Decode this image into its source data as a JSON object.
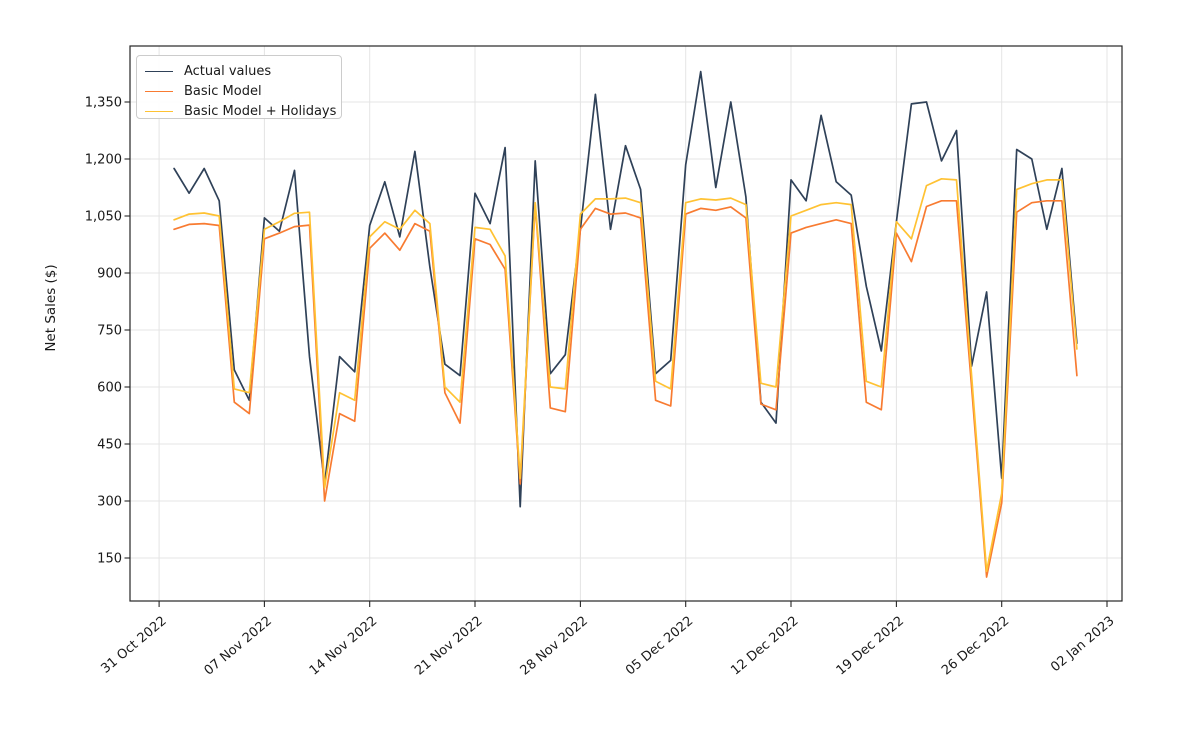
{
  "chart_data": {
    "type": "line",
    "title": "",
    "xlabel": "",
    "ylabel": "Net Sales ($)",
    "grid": true,
    "legend_position": "upper left",
    "x": [
      "2022-11-01",
      "2022-11-02",
      "2022-11-03",
      "2022-11-04",
      "2022-11-05",
      "2022-11-06",
      "2022-11-07",
      "2022-11-08",
      "2022-11-09",
      "2022-11-10",
      "2022-11-11",
      "2022-11-12",
      "2022-11-13",
      "2022-11-14",
      "2022-11-15",
      "2022-11-16",
      "2022-11-17",
      "2022-11-18",
      "2022-11-19",
      "2022-11-20",
      "2022-11-21",
      "2022-11-22",
      "2022-11-23",
      "2022-11-24",
      "2022-11-25",
      "2022-11-26",
      "2022-11-27",
      "2022-11-28",
      "2022-11-29",
      "2022-11-30",
      "2022-12-01",
      "2022-12-02",
      "2022-12-03",
      "2022-12-04",
      "2022-12-05",
      "2022-12-06",
      "2022-12-07",
      "2022-12-08",
      "2022-12-09",
      "2022-12-10",
      "2022-12-11",
      "2022-12-12",
      "2022-12-13",
      "2022-12-14",
      "2022-12-15",
      "2022-12-16",
      "2022-12-17",
      "2022-12-18",
      "2022-12-19",
      "2022-12-20",
      "2022-12-21",
      "2022-12-22",
      "2022-12-23",
      "2022-12-24",
      "2022-12-25",
      "2022-12-26",
      "2022-12-27",
      "2022-12-28",
      "2022-12-29",
      "2022-12-30",
      "2022-12-31"
    ],
    "x_ticks": [
      {
        "label": "31 Oct 2022",
        "day": -1
      },
      {
        "label": "07 Nov 2022",
        "day": 6
      },
      {
        "label": "14 Nov 2022",
        "day": 13
      },
      {
        "label": "21 Nov 2022",
        "day": 20
      },
      {
        "label": "28 Nov 2022",
        "day": 27
      },
      {
        "label": "05 Dec 2022",
        "day": 34
      },
      {
        "label": "12 Dec 2022",
        "day": 41
      },
      {
        "label": "19 Dec 2022",
        "day": 48
      },
      {
        "label": "26 Dec 2022",
        "day": 55
      },
      {
        "label": "02 Jan 2023",
        "day": 62
      }
    ],
    "y_ticks": [
      150,
      300,
      450,
      600,
      750,
      900,
      1050,
      1200,
      1350
    ],
    "y_tick_labels": [
      "150",
      "300",
      "450",
      "600",
      "750",
      "900",
      "1,050",
      "1,200",
      "1,350"
    ],
    "ylim": [
      40,
      1500
    ],
    "series": [
      {
        "name": "Actual values",
        "color": "#2f4158",
        "values": [
          1175,
          1110,
          1175,
          1090,
          645,
          565,
          1045,
          1010,
          1170,
          680,
          345,
          680,
          640,
          1025,
          1140,
          995,
          1220,
          915,
          660,
          630,
          1110,
          1030,
          1230,
          285,
          1195,
          635,
          685,
          1015,
          1370,
          1015,
          1235,
          1120,
          635,
          670,
          1185,
          1430,
          1125,
          1350,
          1100,
          560,
          505,
          1145,
          1090,
          1315,
          1140,
          1105,
          865,
          695,
          1035,
          1345,
          1350,
          1195,
          1275,
          655,
          850,
          360,
          1225,
          1200,
          1015,
          1175,
          715
        ]
      },
      {
        "name": "Basic Model",
        "color": "#f87b31",
        "values": [
          1015,
          1028,
          1030,
          1025,
          560,
          530,
          990,
          1005,
          1022,
          1026,
          300,
          530,
          510,
          965,
          1005,
          960,
          1030,
          1010,
          585,
          505,
          990,
          975,
          910,
          345,
          1080,
          545,
          535,
          1015,
          1070,
          1055,
          1058,
          1045,
          565,
          550,
          1055,
          1070,
          1065,
          1074,
          1045,
          555,
          540,
          1005,
          1020,
          1030,
          1040,
          1030,
          560,
          540,
          1005,
          930,
          1075,
          1090,
          1090,
          600,
          100,
          295,
          1060,
          1085,
          1090,
          1090,
          630
        ]
      },
      {
        "name": "Basic Model + Holidays",
        "color": "#ffc233",
        "values": [
          1040,
          1055,
          1058,
          1050,
          595,
          585,
          1015,
          1035,
          1057,
          1060,
          335,
          585,
          565,
          995,
          1035,
          1015,
          1065,
          1030,
          600,
          560,
          1020,
          1015,
          945,
          360,
          1085,
          600,
          595,
          1055,
          1095,
          1095,
          1097,
          1085,
          615,
          595,
          1085,
          1095,
          1092,
          1097,
          1080,
          610,
          600,
          1050,
          1065,
          1080,
          1085,
          1080,
          615,
          600,
          1035,
          990,
          1130,
          1148,
          1145,
          630,
          115,
          320,
          1120,
          1135,
          1145,
          1145,
          700
        ]
      }
    ]
  }
}
